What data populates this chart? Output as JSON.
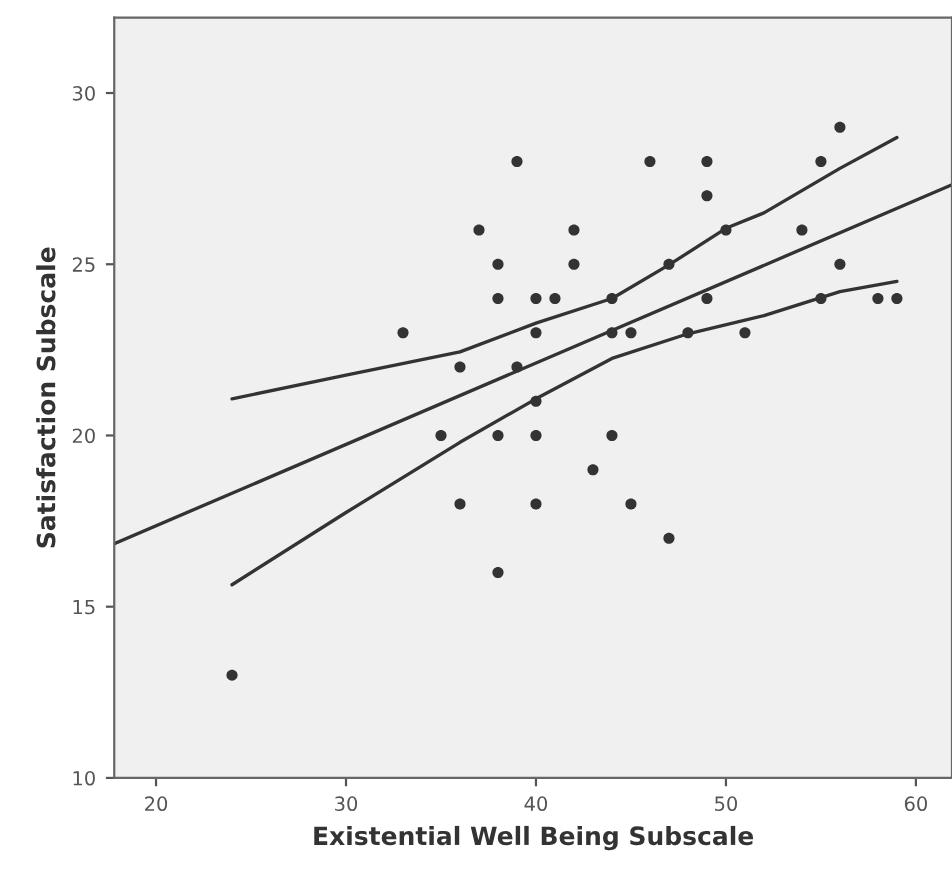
{
  "chart_data": {
    "type": "scatter",
    "xlabel": "Existential Well Being Subscale",
    "ylabel": "Satisfaction Subscale",
    "xlim": [
      17.8,
      61.9
    ],
    "ylim": [
      10,
      32.2
    ],
    "xticks": [
      20,
      30,
      40,
      50,
      60
    ],
    "yticks": [
      10,
      15,
      20,
      25,
      30
    ],
    "grid": false,
    "legend": false,
    "series": [
      {
        "marker": "circle",
        "color": "#333333",
        "x": [
          24,
          33,
          35,
          36,
          36,
          37,
          38,
          38,
          38,
          38,
          39,
          39,
          40,
          40,
          40,
          40,
          40,
          41,
          42,
          42,
          43,
          44,
          44,
          44,
          45,
          45,
          46,
          47,
          47,
          48,
          49,
          49,
          49,
          50,
          51,
          54,
          55,
          55,
          56,
          56,
          58,
          59
        ],
        "values": [
          13,
          23,
          20,
          22,
          18,
          26,
          25,
          24,
          20,
          16,
          28,
          22,
          24,
          23,
          21,
          20,
          18,
          24,
          26,
          25,
          19,
          24,
          23,
          20,
          23,
          18,
          28,
          25,
          17,
          23,
          28,
          27,
          24,
          26,
          23,
          26,
          28,
          24,
          29,
          25,
          24,
          24
        ]
      },
      {
        "type": "line",
        "color": "#333333",
        "x": [
          17.8,
          61.9
        ],
        "values": [
          16.84,
          27.32
        ]
      },
      {
        "type": "line",
        "color": "#333333",
        "x": [
          24,
          30,
          36,
          40,
          44,
          47,
          50,
          52,
          56,
          59
        ],
        "values": [
          21.07,
          21.76,
          22.44,
          23.28,
          24.0,
          24.98,
          26.05,
          26.5,
          27.8,
          28.7
        ]
      },
      {
        "type": "line",
        "color": "#333333",
        "x": [
          24,
          30,
          36,
          40,
          44,
          48,
          52,
          56,
          59
        ],
        "values": [
          15.64,
          17.75,
          19.8,
          21.07,
          22.25,
          22.97,
          23.5,
          24.2,
          24.5
        ]
      }
    ]
  }
}
